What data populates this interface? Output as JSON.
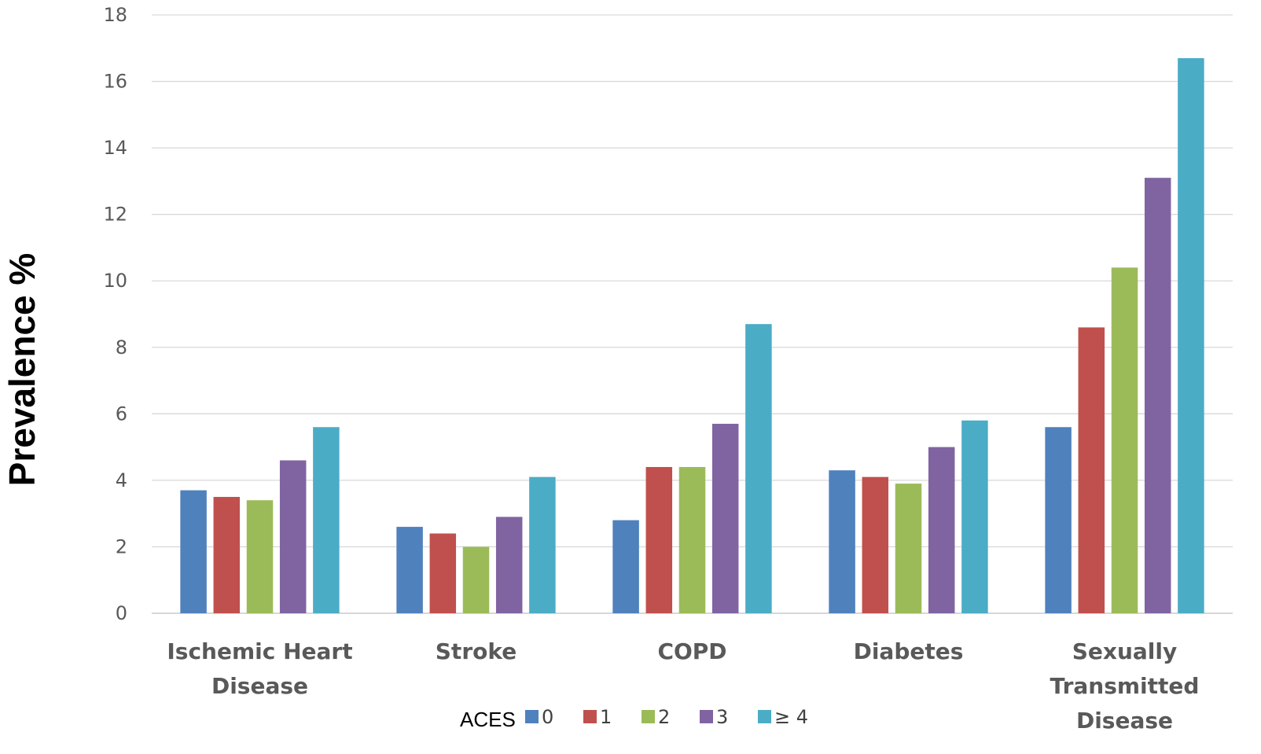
{
  "chart_data": {
    "type": "bar",
    "ylabel": "Prevalence %",
    "ylim": [
      0,
      18
    ],
    "yticks": [
      0,
      2,
      4,
      6,
      8,
      10,
      12,
      14,
      16,
      18
    ],
    "grid": true,
    "legend_placement": "bottom",
    "legend_title": "ACES",
    "categories": [
      [
        "Ischemic Heart",
        "Disease"
      ],
      [
        "Stroke"
      ],
      [
        "COPD"
      ],
      [
        "Diabetes"
      ],
      [
        "Sexually",
        "Transmitted",
        "Disease"
      ]
    ],
    "series": [
      {
        "name": "0",
        "color": "#4F81BD",
        "values": [
          3.7,
          2.6,
          2.8,
          4.3,
          5.6
        ]
      },
      {
        "name": "1",
        "color": "#C0504D",
        "values": [
          3.5,
          2.4,
          4.4,
          4.1,
          8.6
        ]
      },
      {
        "name": "2",
        "color": "#9BBB59",
        "values": [
          3.4,
          2.0,
          4.4,
          3.9,
          10.4
        ]
      },
      {
        "name": "3",
        "color": "#8064A2",
        "values": [
          4.6,
          2.9,
          5.7,
          5.0,
          13.1
        ]
      },
      {
        "name": "≥ 4",
        "color": "#4BACC6",
        "values": [
          5.6,
          4.1,
          8.7,
          5.8,
          16.7
        ]
      }
    ]
  }
}
